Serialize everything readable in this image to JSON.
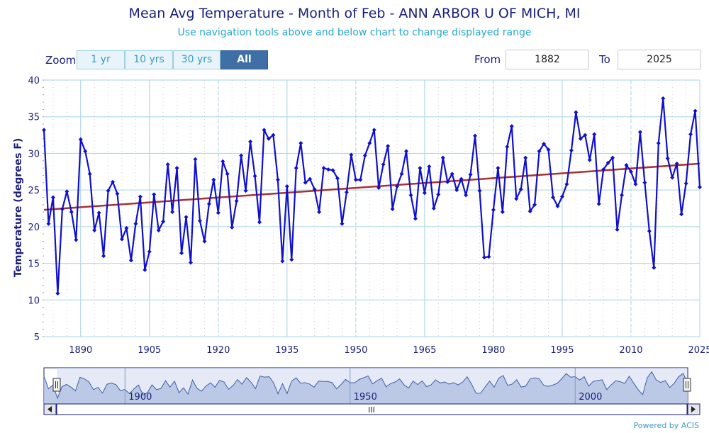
{
  "header": {
    "title": "Mean Avg Temperature - Month of Feb - ANN ARBOR U OF MICH, MI",
    "subtitle": "Use navigation tools above and below chart to change displayed range"
  },
  "zoom": {
    "label": "Zoom",
    "buttons": [
      "1 yr",
      "10 yrs",
      "30 yrs",
      "All"
    ],
    "active": "All"
  },
  "range": {
    "from_label": "From",
    "from_value": "1882",
    "to_label": "To",
    "to_value": "2025"
  },
  "navigator": {
    "labels": [
      "1900",
      "1950",
      "2000"
    ],
    "scroll_grip": "III"
  },
  "footer": {
    "credit": "Powered by ACIS"
  },
  "colors": {
    "series": "#1010cc",
    "trend": "#a83232",
    "grid": "#a9d3e6",
    "navigator_fill": "#b4c3e3",
    "navigator_line": "#3e5fa8"
  },
  "chart_data": {
    "type": "line",
    "title": "Mean Avg Temperature - Month of Feb - ANN ARBOR U OF MICH, MI",
    "ylabel": "Temperature (degrees F)",
    "xlabel": "",
    "xlim": [
      1882,
      2025
    ],
    "ylim": [
      5,
      40
    ],
    "x_ticks": [
      1890,
      1905,
      1920,
      1935,
      1950,
      1965,
      1980,
      1995,
      2010,
      2025
    ],
    "y_ticks": [
      5,
      10,
      15,
      20,
      25,
      30,
      35,
      40
    ],
    "grid": true,
    "legend": "none",
    "x_start": 1882,
    "series": [
      {
        "values": [
          33.2,
          20.4,
          24.0,
          10.9,
          22.4,
          24.8,
          22.0,
          18.2,
          31.9,
          30.3,
          27.2,
          19.5,
          21.9,
          16.0,
          24.9,
          26.1,
          24.5,
          18.3,
          19.8,
          15.4,
          20.4,
          24.1,
          14.1,
          16.6,
          24.4,
          19.5,
          20.7,
          28.5,
          22.0,
          28.0,
          16.4,
          21.3,
          15.1,
          29.2,
          20.8,
          18.0,
          23.1,
          26.4,
          21.9,
          28.9,
          27.2,
          19.9,
          23.5,
          29.7,
          24.9,
          31.6,
          26.9,
          20.6,
          33.2,
          32.0,
          32.5,
          26.4,
          15.3,
          25.5,
          15.5,
          28.0,
          31.4,
          26.0,
          26.5,
          25.1,
          22.0,
          28.0,
          27.8,
          27.7,
          26.6,
          20.4,
          24.7,
          29.8,
          26.4,
          26.4,
          29.7,
          31.4,
          33.2,
          25.3,
          28.5,
          31.0,
          22.4,
          25.5,
          27.2,
          30.3,
          24.3,
          21.1,
          28.0,
          24.6,
          28.2,
          22.5,
          24.4,
          29.4,
          26.1,
          27.2,
          25.0,
          26.5,
          24.3,
          27.1,
          32.4,
          24.9,
          15.8,
          15.9,
          22.3,
          28.0,
          22.0,
          30.9,
          33.7,
          23.8,
          25.1,
          29.4,
          22.1,
          23.0,
          30.3,
          31.3,
          30.5,
          24.0,
          22.8,
          24.1,
          25.8,
          30.4,
          35.6,
          32.0,
          32.5,
          29.1,
          32.6,
          23.1,
          27.8,
          28.7,
          29.4,
          19.6,
          24.3,
          28.4,
          27.5,
          25.8,
          32.9,
          26.0,
          19.4,
          14.4,
          31.4,
          37.5,
          29.3,
          26.7,
          28.6,
          21.7,
          25.9,
          32.6,
          35.8,
          25.4
        ]
      }
    ],
    "trend_line": {
      "x": [
        1882,
        2025
      ],
      "y": [
        22.3,
        28.6
      ]
    }
  }
}
